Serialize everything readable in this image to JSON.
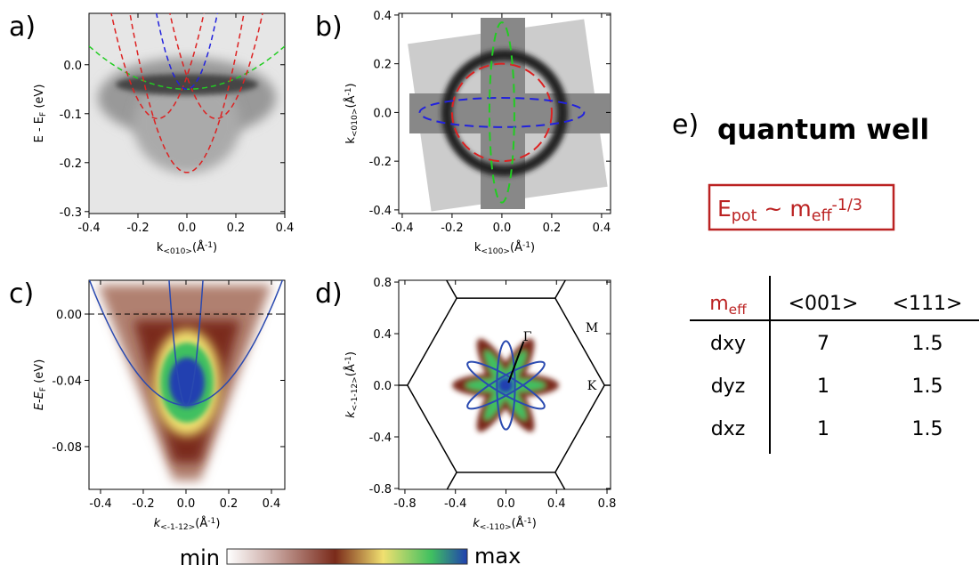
{
  "panels": [
    {
      "label": "a)",
      "xlabel": [
        {
          "t": "k"
        },
        {
          "t": "<010>",
          "s": "sub"
        },
        {
          "t": "(Å"
        },
        {
          "t": "-1",
          "s": "sup"
        },
        {
          "t": ")"
        }
      ],
      "ylabel": [
        {
          "t": "E - E"
        },
        {
          "t": "F",
          "s": "sub"
        },
        {
          "t": " (eV)"
        }
      ],
      "xlim": [
        -0.4,
        0.4
      ],
      "ylim": [
        -0.304,
        0.105
      ],
      "xticks": [
        {
          "value": -0.4,
          "label": "-0.4"
        },
        {
          "value": -0.2,
          "label": "-0.2"
        },
        {
          "value": 0,
          "label": "0.0"
        },
        {
          "value": 0.2,
          "label": "0.2"
        },
        {
          "value": 0.4,
          "label": "0.4"
        }
      ],
      "yticks": [
        {
          "value": 0,
          "label": "0.0"
        },
        {
          "value": -0.1,
          "label": "-0.1"
        },
        {
          "value": -0.2,
          "label": "-0.2"
        },
        {
          "value": -0.3,
          "label": "-0.3"
        }
      ]
    },
    {
      "label": "b)",
      "xlabel": [
        {
          "t": "k"
        },
        {
          "t": "<100>",
          "s": "sub"
        },
        {
          "t": "(Å"
        },
        {
          "t": "-1",
          "s": "sup"
        },
        {
          "t": ")"
        }
      ],
      "ylabel": [
        {
          "t": "k"
        },
        {
          "t": "<010>",
          "s": "sub"
        },
        {
          "t": "(Å"
        },
        {
          "t": "-1",
          "s": "sup"
        },
        {
          "t": ")"
        }
      ],
      "xlim": [
        -0.414,
        0.436
      ],
      "ylim": [
        -0.415,
        0.407
      ],
      "xticks": [
        {
          "value": -0.4,
          "label": "-0.4"
        },
        {
          "value": -0.2,
          "label": "-0.2"
        },
        {
          "value": 0,
          "label": "0.0"
        },
        {
          "value": 0.2,
          "label": "0.2"
        },
        {
          "value": 0.4,
          "label": "0.4"
        }
      ],
      "yticks": [
        {
          "value": 0.4,
          "label": "0.4"
        },
        {
          "value": 0.2,
          "label": "0.2"
        },
        {
          "value": 0,
          "label": "0.0"
        },
        {
          "value": -0.2,
          "label": "-0.2"
        },
        {
          "value": -0.4,
          "label": "-0.4"
        }
      ]
    },
    {
      "label": "c)",
      "xlabel": [
        {
          "t": "k",
          "s": "it"
        },
        {
          "t": "<-1-12>",
          "s": "sub"
        },
        {
          "t": "(Å"
        },
        {
          "t": "-1",
          "s": "sup"
        },
        {
          "t": ")"
        }
      ],
      "ylabel": [
        {
          "t": "E-E",
          "s": "it"
        },
        {
          "t": "F",
          "s": "sub"
        },
        {
          "t": " (eV)"
        }
      ],
      "xlim": [
        -0.454,
        0.4625
      ],
      "ylim": [
        -0.1058,
        0.0204
      ],
      "xticks": [
        {
          "value": -0.4,
          "label": "-0.4"
        },
        {
          "value": -0.2,
          "label": "-0.2"
        },
        {
          "value": 0,
          "label": "0.0"
        },
        {
          "value": 0.2,
          "label": "0.2"
        },
        {
          "value": 0.4,
          "label": "0.4"
        }
      ],
      "yticks": [
        {
          "value": 0,
          "label": "0.00"
        },
        {
          "value": -0.04,
          "label": "-0.04"
        },
        {
          "value": -0.08,
          "label": "-0.08"
        }
      ]
    },
    {
      "label": "d)",
      "xlabel": [
        {
          "t": "k",
          "s": "it"
        },
        {
          "t": "<-110>",
          "s": "sub"
        },
        {
          "t": "(Å"
        },
        {
          "t": "-1",
          "s": "sup"
        },
        {
          "t": ")"
        }
      ],
      "ylabel": [
        {
          "t": "k",
          "s": "it"
        },
        {
          "t": "<-1-12>",
          "s": "sub"
        },
        {
          "t": "(Å"
        },
        {
          "t": "-1",
          "s": "sup"
        },
        {
          "t": ")"
        }
      ],
      "xlim": [
        -0.849,
        0.828
      ],
      "ylim": [
        -0.807,
        0.814
      ],
      "xticks": [
        {
          "value": -0.8,
          "label": "-0.8"
        },
        {
          "value": -0.4,
          "label": "-0.4"
        },
        {
          "value": 0,
          "label": "0.0"
        },
        {
          "value": 0.4,
          "label": "0.4"
        },
        {
          "value": 0.8,
          "label": "0.8"
        }
      ],
      "yticks": [
        {
          "value": 0.8,
          "label": "0.8"
        },
        {
          "value": 0.4,
          "label": "0.4"
        },
        {
          "value": 0,
          "label": "0.0"
        },
        {
          "value": -0.4,
          "label": "-0.4"
        },
        {
          "value": -0.8,
          "label": "-0.8"
        }
      ],
      "annotations": [
        "M",
        "K",
        "Γ"
      ]
    }
  ],
  "colorbar": {
    "min": "min",
    "max": "max"
  },
  "panel_e": {
    "label": "e)",
    "title": "quantum well",
    "formula": [
      {
        "t": "E"
      },
      {
        "t": "pot",
        "s": "sub"
      },
      {
        "t": " ~ m"
      },
      {
        "t": "eff",
        "s": "sub"
      },
      {
        "t": "-1/3",
        "s": "sup"
      }
    ],
    "table": {
      "header": [
        [
          {
            "t": "m"
          },
          {
            "t": "eff",
            "s": "sub"
          }
        ],
        "<001>",
        "<111>"
      ],
      "rows": [
        [
          "dxy",
          "7",
          "1.5"
        ],
        [
          "dyz",
          "1",
          "1.5"
        ],
        [
          "dxz",
          "1",
          "1.5"
        ]
      ]
    }
  }
}
